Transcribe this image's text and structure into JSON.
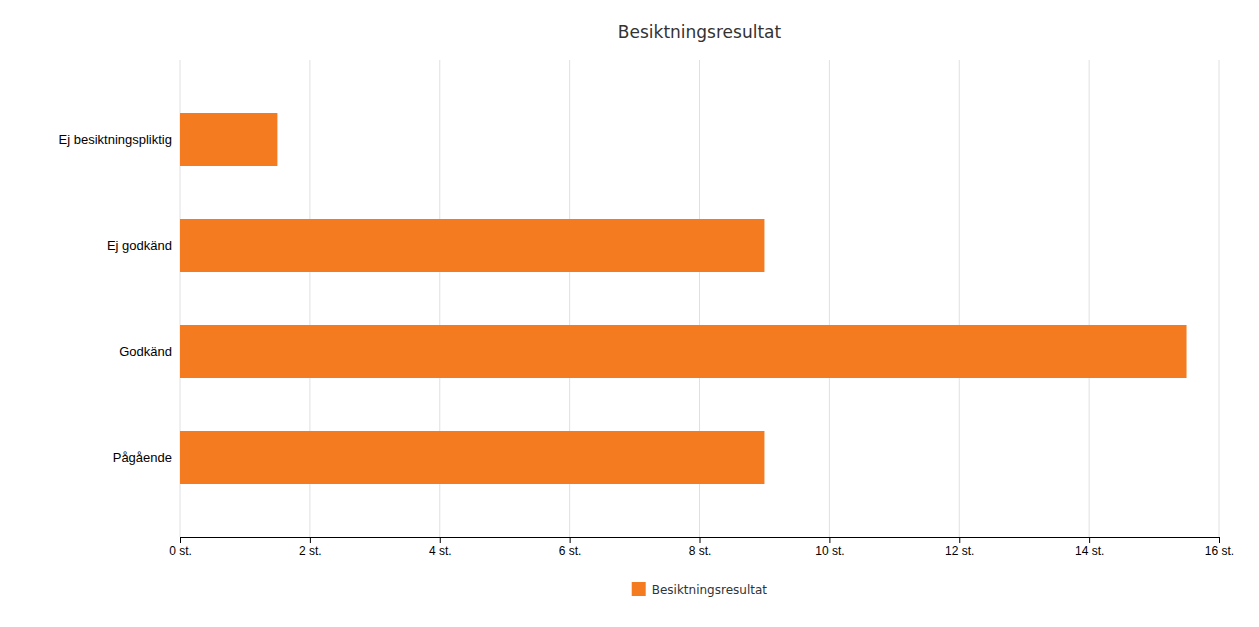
{
  "chart_data": {
    "type": "bar",
    "orientation": "horizontal",
    "title": "Besiktningsresultat",
    "categories": [
      "Ej besiktningspliktig",
      "Ej godkänd",
      "Godkänd",
      "Pågående"
    ],
    "series": [
      {
        "name": "Besiktningsresultat",
        "color": "#F47B20",
        "values": [
          1.5,
          9.0,
          15.5,
          9.0
        ]
      }
    ],
    "xlim": [
      0,
      16
    ],
    "xticks": [
      {
        "value": 0,
        "label": "0 st."
      },
      {
        "value": 2,
        "label": "2 st."
      },
      {
        "value": 4,
        "label": "4 st."
      },
      {
        "value": 6,
        "label": "6 st."
      },
      {
        "value": 8,
        "label": "8 st."
      },
      {
        "value": 10,
        "label": "10 st."
      },
      {
        "value": 12,
        "label": "12 st."
      },
      {
        "value": 14,
        "label": "14 st."
      },
      {
        "value": 16,
        "label": "16 st."
      }
    ],
    "grid": true,
    "legend": "bottom"
  }
}
